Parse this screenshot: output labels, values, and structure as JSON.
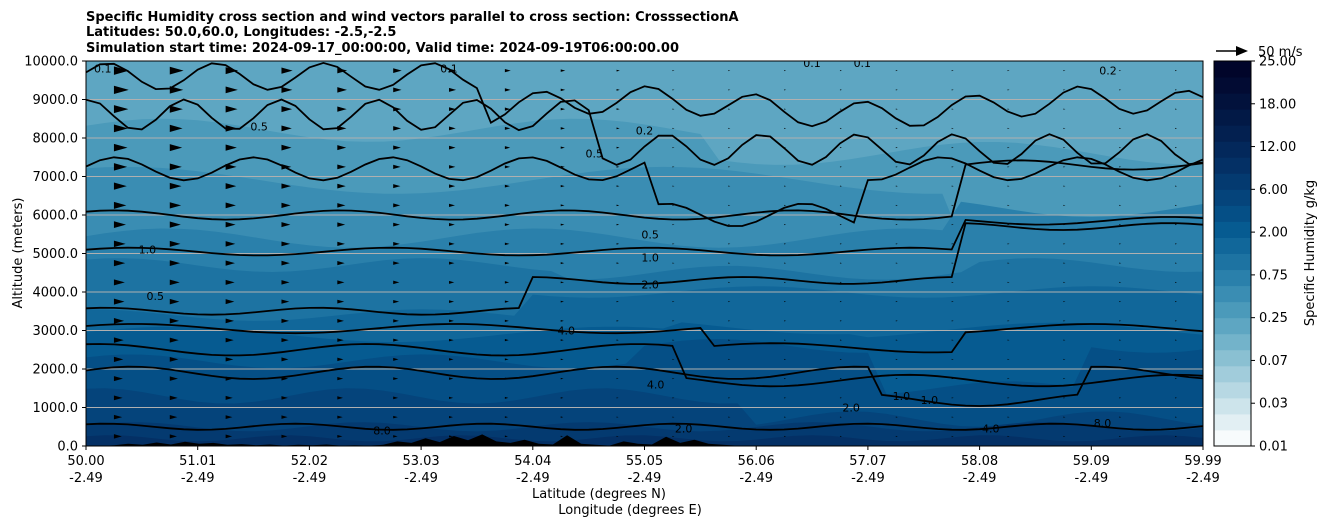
{
  "chart_data": {
    "type": "contour",
    "title_lines": [
      "Specific Humidity cross section and wind vectors parallel to cross section: CrosssectionA",
      "Latitudes: 50.0,60.0, Longitudes: -2.5,-2.5",
      "Simulation start time: 2024-09-17_00:00:00, Valid time: 2024-09-19T06:00:00.00"
    ],
    "ylabel": "Altitude (meters)",
    "xlabel_lat": "Latitude (degrees N)",
    "xlabel_lon": "Longitude (degrees E)",
    "ylim": [
      0,
      10000
    ],
    "xlim": [
      0,
      10
    ],
    "y_ticks": [
      0,
      1000,
      2000,
      3000,
      4000,
      5000,
      6000,
      7000,
      8000,
      9000,
      10000
    ],
    "y_tick_labels": [
      "0.0",
      "1000.0",
      "2000.0",
      "3000.0",
      "4000.0",
      "5000.0",
      "6000.0",
      "7000.0",
      "8000.0",
      "9000.0",
      "10000.0"
    ],
    "x_tick_lats": [
      "50.00",
      "51.01",
      "52.02",
      "53.03",
      "54.04",
      "55.05",
      "56.06",
      "57.07",
      "58.08",
      "59.09",
      "59.99"
    ],
    "x_tick_lons": [
      "-2.49",
      "-2.49",
      "-2.49",
      "-2.49",
      "-2.49",
      "-2.49",
      "-2.49",
      "-2.49",
      "-2.49",
      "-2.49",
      "-2.49"
    ],
    "quiver_key_label": "50 m/s",
    "colorbar": {
      "label": "Specific Humidity g/kg",
      "levels": [
        0.01,
        0.02,
        0.03,
        0.05,
        0.07,
        0.1,
        0.15,
        0.25,
        0.4,
        0.5,
        0.75,
        1.0,
        1.5,
        2.0,
        3.0,
        4.0,
        6.0,
        8.0,
        10.0,
        12.0,
        15.0,
        18.0,
        20.0,
        25.0
      ],
      "tick_labels": [
        "0.01",
        "0.03",
        "0.07",
        "0.25",
        "0.75",
        "2.00",
        "6.00",
        "12.00",
        "18.00",
        "25.00"
      ],
      "colors": [
        "#f7fbfc",
        "#e2eff3",
        "#cde4eb",
        "#b7d8e3",
        "#a1ccdb",
        "#8ac0d2",
        "#73b3ca",
        "#5ea6c2",
        "#4b9aba",
        "#3a8db3",
        "#2a80ab",
        "#1d73a2",
        "#11679a",
        "#065b91",
        "#054f86",
        "#05447b",
        "#043a70",
        "#043065",
        "#03285b",
        "#032050",
        "#021946",
        "#02123c",
        "#020b33",
        "#01052a"
      ]
    },
    "contour_labels": [
      {
        "text": "0.1",
        "x": 0.15,
        "y": 9800
      },
      {
        "text": "0.1",
        "x": 3.25,
        "y": 9800
      },
      {
        "text": "0.1",
        "x": 6.5,
        "y": 9950
      },
      {
        "text": "0.1",
        "x": 6.95,
        "y": 9950
      },
      {
        "text": "0.2",
        "x": 9.15,
        "y": 9750
      },
      {
        "text": "0.2",
        "x": 5.0,
        "y": 8200
      },
      {
        "text": "0.5",
        "x": 1.55,
        "y": 8300
      },
      {
        "text": "0.5",
        "x": 4.55,
        "y": 7600
      },
      {
        "text": "0.5",
        "x": 5.05,
        "y": 5500
      },
      {
        "text": "1.0",
        "x": 0.55,
        "y": 5100
      },
      {
        "text": "0.5",
        "x": 0.62,
        "y": 3900
      },
      {
        "text": "1.0",
        "x": 5.05,
        "y": 4900
      },
      {
        "text": "2.0",
        "x": 5.05,
        "y": 4200
      },
      {
        "text": "4.0",
        "x": 4.3,
        "y": 3000
      },
      {
        "text": "4.0",
        "x": 5.1,
        "y": 1600
      },
      {
        "text": "1.0",
        "x": 7.3,
        "y": 1300
      },
      {
        "text": "1.0",
        "x": 7.55,
        "y": 1200
      },
      {
        "text": "2.0",
        "x": 6.85,
        "y": 1000
      },
      {
        "text": "4.0",
        "x": 8.1,
        "y": 450
      },
      {
        "text": "8.0",
        "x": 2.65,
        "y": 400
      },
      {
        "text": "8.0",
        "x": 9.1,
        "y": 600
      },
      {
        "text": "2.0",
        "x": 5.35,
        "y": 450
      }
    ]
  },
  "colors": {
    "line": "#000000",
    "grid": "#b0b0b0",
    "terrain": "#000000"
  }
}
